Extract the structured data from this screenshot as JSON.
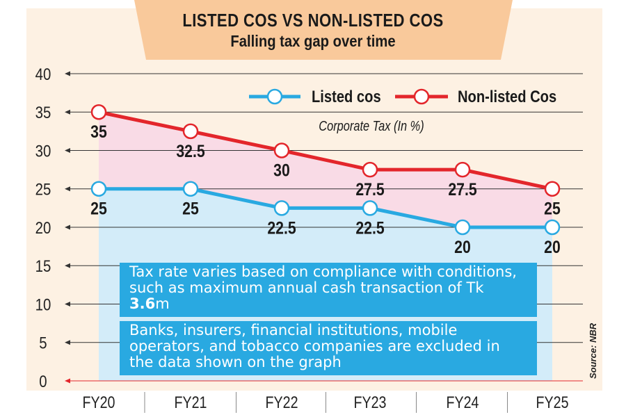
{
  "header": {
    "title": "LISTED COS VS NON-LISTED COS",
    "subtitle": "Falling tax gap over time"
  },
  "notes": {
    "note1": {
      "before": "Tax rate varies based on compliance with conditions, such as maximum annual cash transaction of Tk ",
      "bold": "3.6",
      "after": "m"
    },
    "note2": "Banks, insurers, financial institutions, mobile operators, and tobacco companies are excluded in the data shown on the graph"
  },
  "source": "Source: NBR",
  "colors": {
    "listed": "#29a9e1",
    "nonlisted": "#e3262b",
    "listed_fill": "#d3ecf9",
    "gap_fill": "#f9dbe6"
  },
  "chart_data": {
    "type": "line",
    "title": "Corporate Tax (In %)",
    "categories": [
      "FY20",
      "FY21",
      "FY22",
      "FY23",
      "FY24",
      "FY25"
    ],
    "yticks": [
      0,
      5,
      10,
      15,
      20,
      25,
      30,
      35,
      40
    ],
    "ylim": [
      0,
      40
    ],
    "series": [
      {
        "name": "Listed cos",
        "values": [
          25,
          25,
          22.5,
          22.5,
          20,
          20
        ],
        "labels": [
          "25",
          "25",
          "22.5",
          "22.5",
          "20",
          "20"
        ]
      },
      {
        "name": "Non-listed Cos",
        "values": [
          35,
          32.5,
          30,
          27.5,
          27.5,
          25
        ],
        "labels": [
          "35",
          "32.5",
          "30",
          "27.5",
          "27.5",
          "25"
        ]
      }
    ]
  }
}
